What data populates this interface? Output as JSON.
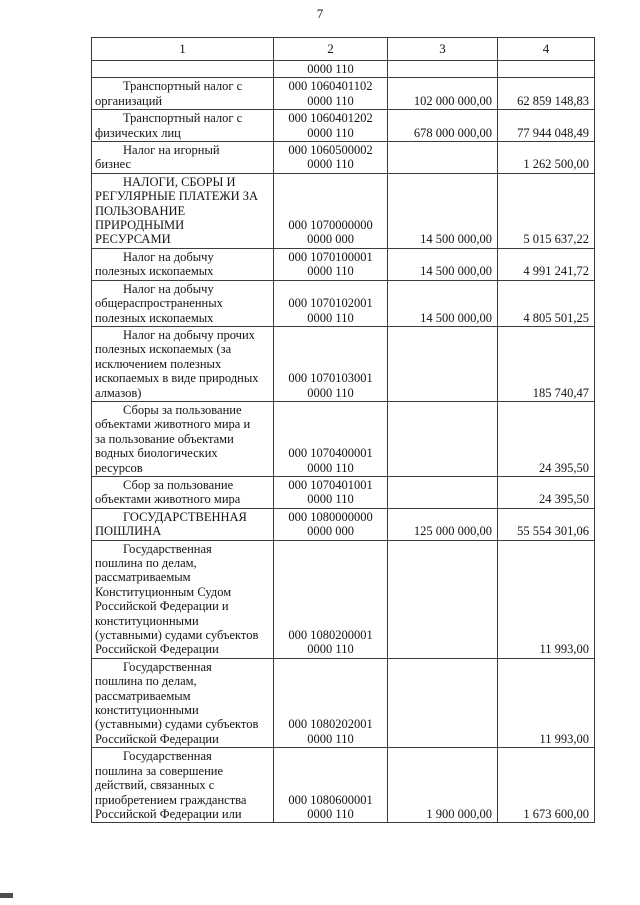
{
  "page": {
    "number": "7"
  },
  "table": {
    "headers": [
      "1",
      "2",
      "3",
      "4"
    ],
    "rows": [
      {
        "name": "",
        "code": "0000 110",
        "planned": "",
        "actual": ""
      },
      {
        "name": "Транспортный налог с\nорганизаций",
        "code": "000 1060401102\n0000 110",
        "planned": "102 000 000,00",
        "actual": "62 859 148,83"
      },
      {
        "name": "Транспортный налог с\nфизических лиц",
        "code": "000 1060401202\n0000 110",
        "planned": "678 000 000,00",
        "actual": "77 944 048,49"
      },
      {
        "name": "Налог на игорный\nбизнес",
        "code": "000 1060500002\n0000 110",
        "planned": "",
        "actual": "1 262 500,00"
      },
      {
        "name": "НАЛОГИ, СБОРЫ И\nРЕГУЛЯРНЫЕ ПЛАТЕЖИ ЗА\nПОЛЬЗОВАНИЕ\nПРИРОДНЫМИ\nРЕСУРСАМИ",
        "code": "000 1070000000\n0000 000",
        "planned": "14 500 000,00",
        "actual": "5 015 637,22"
      },
      {
        "name": "Налог на добычу\nполезных ископаемых",
        "code": "000 1070100001\n0000 110",
        "planned": "14 500 000,00",
        "actual": "4 991 241,72"
      },
      {
        "name": "Налог на добычу\nобщераспространенных\nполезных ископаемых",
        "code": "000 1070102001\n0000 110",
        "planned": "14 500 000,00",
        "actual": "4 805 501,25"
      },
      {
        "name": "Налог на добычу прочих\nполезных ископаемых (за\nисключением полезных\nископаемых в виде природных\nалмазов)",
        "code": "000 1070103001\n0000 110",
        "planned": "",
        "actual": "185 740,47"
      },
      {
        "name": "Сборы за пользование\nобъектами животного мира и\nза пользование объектами\nводных биологических\nресурсов",
        "code": "000 1070400001\n0000 110",
        "planned": "",
        "actual": "24 395,50"
      },
      {
        "name": "Сбор за пользование\nобъектами животного мира",
        "code": "000 1070401001\n0000 110",
        "planned": "",
        "actual": "24 395,50"
      },
      {
        "name": "ГОСУДАРСТВЕННАЯ\nПОШЛИНА",
        "code": "000 1080000000\n0000 000",
        "planned": "125 000 000,00",
        "actual": "55 554 301,06"
      },
      {
        "name": "Государственная\nпошлина по делам,\nрассматриваемым\nКонституционным Судом\nРоссийской Федерации и\nконституционными\n(уставными) судами субъектов\nРоссийской Федерации",
        "code": "000 1080200001\n0000 110",
        "planned": "",
        "actual": "11 993,00"
      },
      {
        "name": "Государственная\nпошлина по делам,\nрассматриваемым\nконституционными\n(уставными) судами субъектов\nРоссийской Федерации",
        "code": "000 1080202001\n0000 110",
        "planned": "",
        "actual": "11 993,00"
      },
      {
        "name": "Государственная\nпошлина за совершение\nдействий, связанных с\nприобретением гражданства\nРоссийской Федерации или",
        "code": "000 1080600001\n0000 110",
        "planned": "1 900 000,00",
        "actual": "1 673 600,00"
      }
    ]
  }
}
